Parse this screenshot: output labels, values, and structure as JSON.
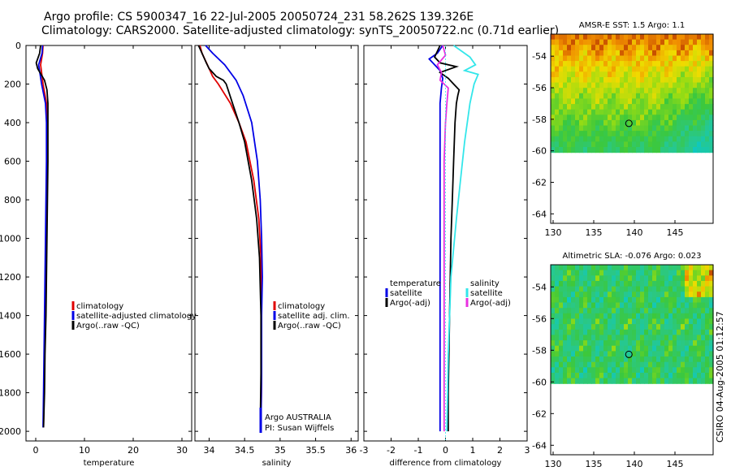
{
  "header": {
    "line1": "Argo profile: CS 5900347_16 22-Jul-2005 20050724_231 58.262S 139.326E",
    "line2": "Climatology: CARS2000. Satellite-adjusted climatology: synTS_20050722.nc (0.71d earlier)"
  },
  "colors": {
    "red": "#e00000",
    "blue": "#0000e6",
    "black": "#000000",
    "cyan": "#33e6ea",
    "magenta": "#e830e0"
  },
  "depth_axis": {
    "ticks": [
      "0",
      "200",
      "400",
      "600",
      "800",
      "1000",
      "1200",
      "1400",
      "1600",
      "1800",
      "2000"
    ],
    "range": [
      0,
      2050
    ]
  },
  "chart_data": [
    {
      "type": "line",
      "panel": "temperature",
      "xlabel": "temperature",
      "xlim": [
        -2,
        32
      ],
      "xticks": [
        "0",
        "10",
        "20",
        "30"
      ],
      "xtick_values": [
        0,
        10,
        20,
        30
      ],
      "legend": [
        "climatology",
        "satellite-adjusted climatology",
        "Argo(..raw -QC)"
      ],
      "series": [
        {
          "name": "climatology",
          "color": "red",
          "depth": [
            0,
            40,
            100,
            200,
            300,
            400,
            600,
            800,
            1000,
            1200,
            1400,
            1600,
            1800,
            1980
          ],
          "values": [
            1.5,
            1.4,
            1.0,
            1.5,
            2.2,
            2.3,
            2.3,
            2.2,
            2.1,
            2.0,
            1.9,
            1.8,
            1.7,
            1.6
          ]
        },
        {
          "name": "satellite-adjusted climatology",
          "color": "blue",
          "depth": [
            0,
            40,
            100,
            200,
            300,
            400,
            600,
            800,
            1000,
            1200,
            1400,
            1600,
            1800,
            1980
          ],
          "values": [
            1.4,
            1.3,
            0.6,
            1.2,
            2.0,
            2.2,
            2.2,
            2.1,
            2.0,
            1.9,
            1.8,
            1.7,
            1.6,
            1.5
          ]
        },
        {
          "name": "Argo(..raw -QC)",
          "color": "black",
          "depth": [
            0,
            40,
            90,
            120,
            180,
            230,
            300,
            400,
            600,
            800,
            1000,
            1200,
            1400,
            1600,
            1800,
            1980
          ],
          "values": [
            1.0,
            0.8,
            0.1,
            0.4,
            1.8,
            2.3,
            2.5,
            2.5,
            2.5,
            2.4,
            2.3,
            2.2,
            2.1,
            1.9,
            1.8,
            1.6
          ]
        }
      ]
    },
    {
      "type": "line",
      "panel": "salinity",
      "xlabel": "salinity",
      "xlim": [
        33.8,
        36.1
      ],
      "xticks": [
        "34",
        "34.5",
        "35",
        "35.5",
        "36"
      ],
      "xtick_values": [
        34,
        34.5,
        35,
        35.5,
        36
      ],
      "legend": [
        "climatology",
        "satellite adj. clim.",
        "Argo(..raw -QC)"
      ],
      "credit": [
        "Argo AUSTRALIA",
        "PI: Susan Wijffels"
      ],
      "series": [
        {
          "name": "climatology",
          "color": "red",
          "depth": [
            0,
            40,
            80,
            120,
            160,
            200,
            300,
            400,
            500,
            700,
            900,
            1100,
            1400,
            1700,
            1980
          ],
          "values": [
            33.87,
            33.9,
            33.95,
            34.0,
            34.05,
            34.13,
            34.3,
            34.42,
            34.52,
            34.63,
            34.7,
            34.73,
            34.74,
            34.74,
            34.73
          ]
        },
        {
          "name": "satellite adj. clim.",
          "color": "blue",
          "depth": [
            0,
            40,
            100,
            180,
            260,
            400,
            600,
            800,
            1000,
            1200,
            1400,
            1700,
            1980
          ],
          "values": [
            33.95,
            34.05,
            34.22,
            34.38,
            34.48,
            34.6,
            34.68,
            34.72,
            34.74,
            34.75,
            34.74,
            34.74,
            34.73
          ]
        },
        {
          "name": "Argo(..raw -QC)",
          "color": "black",
          "depth": [
            0,
            40,
            90,
            120,
            160,
            180,
            200,
            300,
            400,
            500,
            700,
            900,
            1100,
            1400,
            1700,
            1980
          ],
          "values": [
            33.85,
            33.9,
            33.96,
            34.0,
            34.1,
            34.2,
            34.24,
            34.33,
            34.42,
            34.5,
            34.6,
            34.67,
            34.71,
            34.73,
            34.73,
            34.72
          ]
        }
      ]
    },
    {
      "type": "line",
      "panel": "difference",
      "xlabel": "difference from climatology",
      "xlim": [
        -3,
        3
      ],
      "xticks": [
        "-3",
        "-2",
        "-1",
        "0",
        "1",
        "2",
        "3"
      ],
      "xtick_values": [
        -3,
        -2,
        -1,
        0,
        1,
        2,
        3
      ],
      "legend_left": [
        "temperature",
        "satellite",
        "Argo(-adj)"
      ],
      "legend_right": [
        "salinity",
        "satellite",
        "Argo(-adj)"
      ],
      "series": [
        {
          "name": "temperature satellite",
          "color": "blue",
          "depth": [
            0,
            40,
            70,
            100,
            130,
            170,
            220,
            300,
            600,
            1000,
            1500,
            2000
          ],
          "values": [
            -0.1,
            -0.3,
            -0.6,
            -0.4,
            -0.2,
            -0.1,
            -0.15,
            -0.2,
            -0.2,
            -0.2,
            -0.2,
            -0.2
          ]
        },
        {
          "name": "temperature Argo(-adj)",
          "color": "black",
          "depth": [
            0,
            60,
            90,
            110,
            140,
            170,
            200,
            230,
            260,
            300,
            400,
            600,
            800,
            1000,
            1400,
            1800,
            2000
          ],
          "values": [
            -0.2,
            -0.4,
            -0.2,
            0.4,
            -0.2,
            0.1,
            0.3,
            0.5,
            0.45,
            0.4,
            0.35,
            0.3,
            0.25,
            0.2,
            0.15,
            0.1,
            0.1
          ]
        },
        {
          "name": "salinity satellite",
          "color": "cyan",
          "depth": [
            0,
            60,
            100,
            130,
            150,
            200,
            300,
            500,
            700,
            900,
            1200,
            1600,
            2000
          ],
          "values": [
            0.3,
            0.9,
            1.1,
            0.7,
            1.2,
            1.05,
            0.9,
            0.7,
            0.55,
            0.4,
            0.2,
            0.1,
            0.05
          ]
        },
        {
          "name": "salinity Argo(-adj)",
          "color": "magenta",
          "depth": [
            0,
            50,
            100,
            140,
            180,
            220,
            300,
            400,
            600,
            800,
            1000,
            1400,
            1800,
            2000
          ],
          "values": [
            -0.1,
            0.0,
            -0.3,
            -0.15,
            -0.2,
            0.1,
            0.05,
            0.0,
            -0.05,
            -0.05,
            -0.05,
            -0.05,
            -0.05,
            -0.05
          ]
        }
      ]
    },
    {
      "type": "heatmap",
      "panel": "sst_map",
      "title": "AMSR-E SST: 1.5 Argo: 1.1",
      "xticks": [
        "130",
        "135",
        "140",
        "145"
      ],
      "xtick_values": [
        130,
        135,
        140,
        145
      ],
      "yticks": [
        "-54",
        "-56",
        "-58",
        "-60",
        "-62",
        "-64"
      ],
      "ytick_values": [
        -54,
        -56,
        -58,
        -60,
        -62,
        -64
      ],
      "xlim": [
        129.7,
        149.7
      ],
      "ylim": [
        -64.6,
        -52.6
      ],
      "data_lat_min": -60.1,
      "argo_location": [
        139.326,
        -58.262
      ]
    },
    {
      "type": "heatmap",
      "panel": "sla_map",
      "title": "Altimetric SLA: -0.076 Argo: 0.023",
      "xticks": [
        "130",
        "135",
        "140",
        "145"
      ],
      "xtick_values": [
        130,
        135,
        140,
        145
      ],
      "yticks": [
        "-54",
        "-56",
        "-58",
        "-60",
        "-62",
        "-64"
      ],
      "ytick_values": [
        -54,
        -56,
        -58,
        -60,
        -62,
        -64
      ],
      "xlim": [
        129.7,
        149.7
      ],
      "ylim": [
        -64.6,
        -52.6
      ],
      "data_lat_min": -60.1,
      "argo_location": [
        139.326,
        -58.262
      ]
    }
  ],
  "footer": {
    "stamp": "CSIRO 04-Aug-2005 01:12:57"
  }
}
